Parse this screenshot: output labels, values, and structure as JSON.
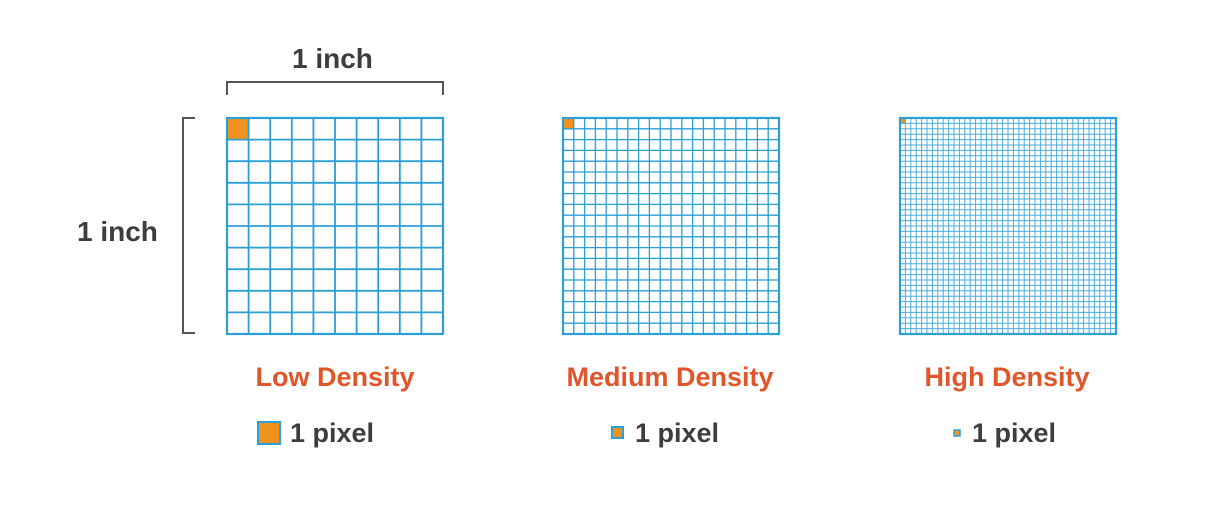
{
  "measure": {
    "width_label": "1 inch",
    "height_label": "1 inch"
  },
  "colors": {
    "grid": "#2b9fd6",
    "pixel": "#f0921e",
    "title": "#e0562a",
    "text": "#3d3d3d",
    "bracket": "#555555"
  },
  "panels": [
    {
      "title": "Low Density",
      "grid_cells": 10,
      "legend_label": "1 pixel"
    },
    {
      "title": "Medium Density",
      "grid_cells": 20,
      "legend_label": "1 pixel"
    },
    {
      "title": "High Density",
      "grid_cells": 40,
      "legend_label": "1 pixel"
    }
  ]
}
